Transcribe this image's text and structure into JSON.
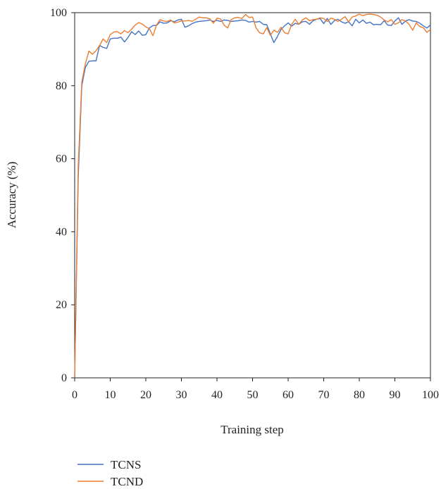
{
  "chart_data": {
    "type": "line",
    "xlabel": "Training step",
    "ylabel": "Accuracy (%)",
    "xlim": [
      0,
      100
    ],
    "ylim": [
      0,
      100
    ],
    "x_ticks": [
      0,
      10,
      20,
      30,
      40,
      50,
      60,
      70,
      80,
      90,
      100
    ],
    "y_ticks": [
      0,
      20,
      40,
      60,
      80,
      100
    ],
    "grid": false,
    "legend_position": "bottom-left",
    "x": [
      0,
      1,
      2,
      3,
      4,
      5,
      6,
      7,
      8,
      9,
      10,
      11,
      12,
      13,
      14,
      15,
      16,
      17,
      18,
      19,
      20,
      21,
      22,
      23,
      24,
      25,
      26,
      27,
      28,
      29,
      30,
      31,
      32,
      33,
      34,
      35,
      36,
      37,
      38,
      39,
      40,
      41,
      42,
      43,
      44,
      45,
      46,
      47,
      48,
      49,
      50,
      51,
      52,
      53,
      54,
      55,
      56,
      57,
      58,
      59,
      60,
      61,
      62,
      63,
      64,
      65,
      66,
      67,
      68,
      69,
      70,
      71,
      72,
      73,
      74,
      75,
      76,
      77,
      78,
      79,
      80,
      81,
      82,
      83,
      84,
      85,
      86,
      87,
      88,
      89,
      90,
      91,
      92,
      93,
      94,
      95,
      96,
      97,
      98,
      99,
      100
    ],
    "series": [
      {
        "name": "TCNS",
        "color": "#4472c4",
        "values": [
          0,
          55,
          80,
          85,
          86.7,
          86.8,
          86.8,
          91,
          90.5,
          90.2,
          92.8,
          93,
          93,
          93.3,
          92,
          93.2,
          94.8,
          94,
          95,
          93.8,
          94,
          95.8,
          96.5,
          96.5,
          97.5,
          97.1,
          97.2,
          97.8,
          97.5,
          98,
          98.2,
          96,
          96.4,
          97,
          97.4,
          97.6,
          97.7,
          97.8,
          98,
          97.6,
          97.9,
          97.6,
          98,
          97.9,
          97.6,
          97.7,
          97.8,
          98,
          97.9,
          97.4,
          97.6,
          97.4,
          97.6,
          96.8,
          96.7,
          94.2,
          91.8,
          93.5,
          95.4,
          96.4,
          97.2,
          96.3,
          97.1,
          96.8,
          97.5,
          97.6,
          96.8,
          97.8,
          98.2,
          98.4,
          97,
          98.4,
          96.8,
          97.8,
          98.2,
          97.5,
          97.1,
          97.5,
          96.4,
          98.2,
          97.2,
          98,
          97.1,
          97.4,
          96.7,
          96.8,
          96.7,
          97.8,
          96.6,
          96.5,
          97.7,
          98.6,
          96.8,
          97.7,
          98.1,
          97.7,
          97.6,
          97.1,
          96.4,
          95.8,
          96.6
        ]
      },
      {
        "name": "TCND",
        "color": "#ed7d31",
        "values": [
          0,
          58,
          81,
          86,
          89.5,
          88.6,
          89.6,
          91,
          92.8,
          91.8,
          94,
          94.7,
          94.8,
          94.2,
          95.1,
          94.5,
          95.5,
          96.6,
          97.3,
          96.9,
          96.1,
          95.6,
          93.7,
          96.6,
          98.1,
          97.7,
          97.6,
          98,
          97.2,
          97.4,
          97.8,
          97.7,
          97.9,
          97.6,
          98.2,
          98.8,
          98.6,
          98.6,
          98.3,
          97.1,
          98.5,
          98.3,
          96.6,
          95.8,
          98.1,
          98.6,
          98.7,
          98.4,
          99.5,
          98.7,
          98.8,
          95.8,
          94.5,
          94.2,
          95.9,
          93.8,
          95.2,
          94.6,
          96,
          94.5,
          94.2,
          96.8,
          98.2,
          96.8,
          98,
          98.6,
          97.8,
          98.1,
          98.2,
          98.6,
          98.4,
          97.6,
          98.5,
          98.2,
          97.6,
          98.2,
          98.9,
          97.5,
          98.8,
          99.1,
          99.6,
          99.2,
          99.5,
          99.6,
          99.5,
          99.3,
          98.8,
          98,
          97.5,
          98.1,
          96.8,
          97.2,
          98.1,
          97.7,
          96.8,
          95.2,
          97.2,
          96.2,
          95.9,
          94.6,
          95.4
        ]
      }
    ]
  }
}
